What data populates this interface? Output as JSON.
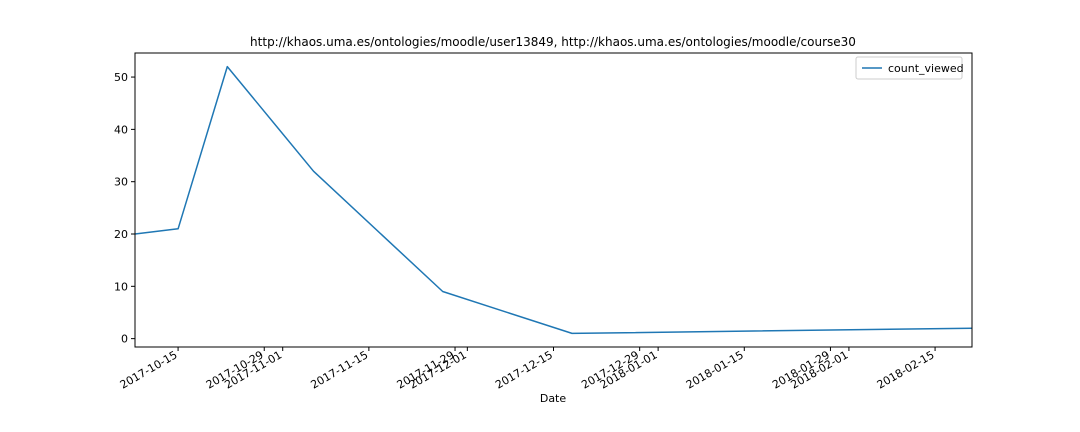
{
  "chart_data": {
    "type": "line",
    "title": "http://khaos.uma.es/ontologies/moodle/user13849, http://khaos.uma.es/ontologies/moodle/course30",
    "xlabel": "Date",
    "ylabel": "",
    "x_type": "date",
    "xlim": [
      "2017-10-08",
      "2018-02-21"
    ],
    "ylim": [
      -1.6,
      54.6
    ],
    "x_ticks": [
      "2017-10-15",
      "2017-10-29",
      "2017-11-01",
      "2017-11-15",
      "2017-11-29",
      "2017-12-01",
      "2017-12-15",
      "2017-12-29",
      "2018-01-01",
      "2018-01-15",
      "2018-01-29",
      "2018-02-01",
      "2018-02-15"
    ],
    "y_ticks": [
      0,
      10,
      20,
      30,
      40,
      50
    ],
    "legend_position": "top-right",
    "grid": false,
    "series": [
      {
        "name": "count_viewed",
        "color": "#1f77b4",
        "x": [
          "2017-10-08",
          "2017-10-15",
          "2017-10-23",
          "2017-11-06",
          "2017-11-27",
          "2017-12-18",
          "2018-02-21"
        ],
        "y": [
          20,
          21,
          52,
          32,
          9,
          1,
          2
        ]
      }
    ]
  }
}
